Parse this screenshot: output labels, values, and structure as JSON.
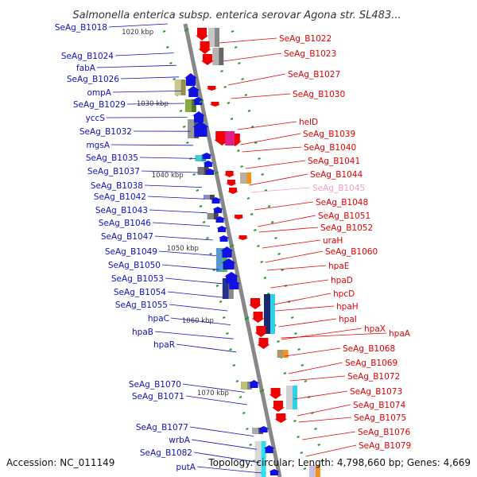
{
  "title": "Salmonella enterica subsp. enterica serovar Agona str. SL483...",
  "accession": "Accession: NC_011149",
  "summary": "Topology: circular; Length: 4,798,660 bp; Genes: 4,669",
  "colors": {
    "left_label": "#1010c0",
    "right_label": "#e00000",
    "faded_label": "#f0a0c8",
    "forward_gene": "#1010e0",
    "reverse_gene": "#f00000",
    "backbone": "#888888",
    "dash": "#2a9a2a"
  },
  "ticks": [
    "1020 kbp",
    "1030 kbp",
    "1040 kbp",
    "1050 kbp",
    "1060 kbp",
    "1070 kbp"
  ],
  "left_labels": [
    "SeAg_B1018",
    "SeAg_B1024",
    "fabA",
    "SeAg_B1026",
    "ompA",
    "SeAg_B1029",
    "yccS",
    "SeAg_B1032",
    "mgsA",
    "SeAg_B1035",
    "SeAg_B1037",
    "SeAg_B1038",
    "SeAg_B1042",
    "SeAg_B1043",
    "SeAg_B1046",
    "SeAg_B1047",
    "SeAg_B1049",
    "SeAg_B1050",
    "SeAg_B1053",
    "SeAg_B1054",
    "SeAg_B1055",
    "hpaC",
    "hpaB",
    "hpaR",
    "SeAg_B1070",
    "SeAg_B1071",
    "SeAg_B1077",
    "wrbA",
    "SeAg_B1082",
    "putA"
  ],
  "right_labels": [
    "SeAg_B1022",
    "SeAg_B1023",
    "SeAg_B1027",
    "SeAg_B1030",
    "helD",
    "SeAg_B1039",
    "SeAg_B1040",
    "SeAg_B1041",
    "SeAg_B1044",
    "SeAg_B1045",
    "SeAg_B1048",
    "SeAg_B1051",
    "SeAg_B1052",
    "uraH",
    "SeAg_B1060",
    "hpaE",
    "hpaD",
    "hpcD",
    "hpaH",
    "hpaI",
    "hpaX",
    "hpaA",
    "SeAg_B1068",
    "SeAg_B1069",
    "SeAg_B1072",
    "SeAg_B1073",
    "SeAg_B1074",
    "SeAg_B1075",
    "SeAg_B1076",
    "SeAg_B1079"
  ]
}
